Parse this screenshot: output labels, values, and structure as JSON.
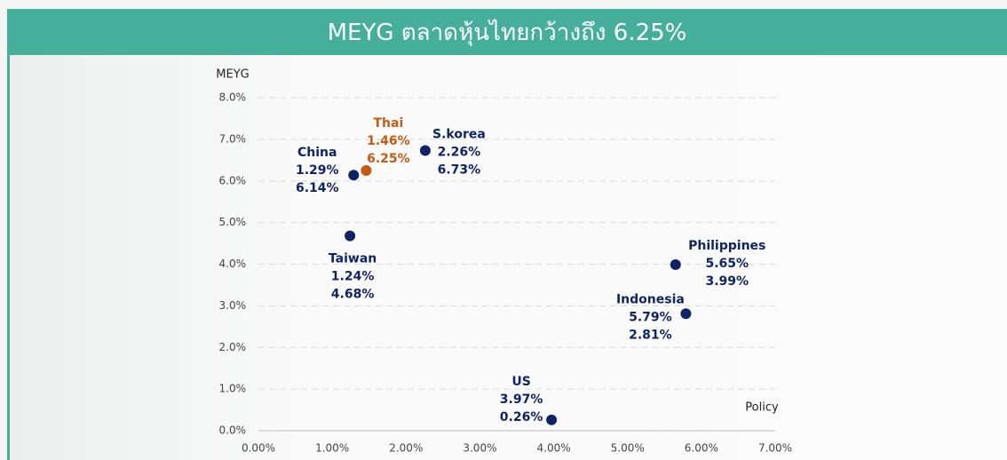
{
  "chart_data": {
    "type": "scatter",
    "title": "MEYG ตลาดหุ้นไทยกว้างถึง 6.25%",
    "y_label": "MEYG",
    "x_label": "Policy",
    "point_names": [
      "China",
      "Thai",
      "S.korea",
      "Taiwan",
      "Philippines",
      "Indonesia",
      "US"
    ],
    "x": [
      1.29,
      1.46,
      2.26,
      1.24,
      5.65,
      5.79,
      3.97
    ],
    "values": [
      6.14,
      6.25,
      6.73,
      4.68,
      3.99,
      2.81,
      0.26
    ],
    "x_labels": [
      "1.29%",
      "1.46%",
      "2.26%",
      "1.24%",
      "5.65%",
      "5.79%",
      "3.97%"
    ],
    "value_labels": [
      "6.14%",
      "6.25%",
      "6.73%",
      "4.68%",
      "3.99%",
      "2.81%",
      "0.26%"
    ],
    "colors": [
      "#0f2466",
      "#c55a11",
      "#0f2466",
      "#0f2466",
      "#0f2466",
      "#0f2466",
      "#0f2466"
    ],
    "xlim": [
      0,
      7
    ],
    "ylim": [
      0,
      8
    ],
    "xticks": [
      {
        "value": 0,
        "label": "0.00%"
      },
      {
        "value": 1,
        "label": "1.00%"
      },
      {
        "value": 2,
        "label": "2.00%"
      },
      {
        "value": 3,
        "label": "3.00%"
      },
      {
        "value": 4,
        "label": "4.00%"
      },
      {
        "value": 5,
        "label": "5.00%"
      },
      {
        "value": 6,
        "label": "6.00%"
      },
      {
        "value": 7,
        "label": "7.00%"
      }
    ],
    "yticks": [
      {
        "value": 0,
        "label": "0.0%"
      },
      {
        "value": 1,
        "label": "1.0%"
      },
      {
        "value": 2,
        "label": "2.0%"
      },
      {
        "value": 3,
        "label": "3.0%"
      },
      {
        "value": 4,
        "label": "4.0%"
      },
      {
        "value": 5,
        "label": "5.0%"
      },
      {
        "value": 6,
        "label": "6.0%"
      },
      {
        "value": 7,
        "label": "7.0%"
      },
      {
        "value": 8,
        "label": "8.0%"
      }
    ],
    "grid": true
  }
}
